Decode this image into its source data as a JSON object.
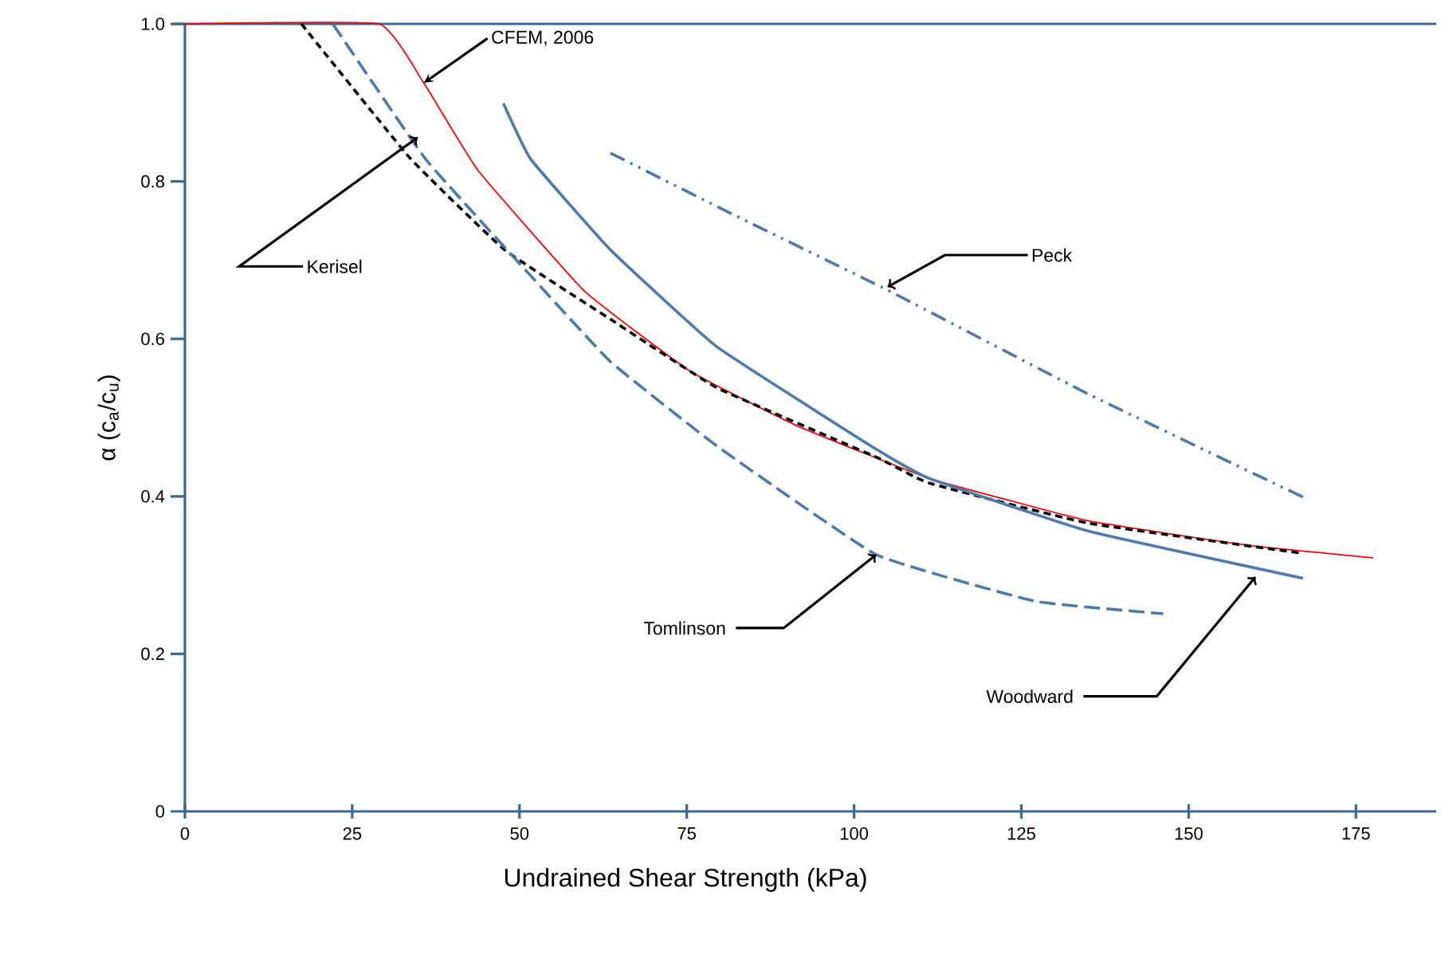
{
  "chart_data": {
    "type": "line",
    "xlabel": "Undrained Shear Strength (kPa)",
    "ylabel": "α (c$_{a}$/c$_{u}$)",
    "xlim": [
      0,
      187
    ],
    "ylim": [
      0,
      1
    ],
    "xticks": [
      0,
      25,
      50,
      75,
      100,
      125,
      150,
      175
    ],
    "yticks": [
      0,
      0.2,
      0.4,
      0.6,
      0.8,
      {
        "value": 1,
        "label": "1.0"
      }
    ],
    "grid": false,
    "marker": "none",
    "series": [
      {
        "color": "#ff0000",
        "line_style": "solid",
        "x": [
          0,
          29,
          35.7,
          43.8,
          59.8,
          75.5,
          91.4,
          111.2,
          135,
          158.8,
          177.6
        ],
        "values": [
          1,
          1,
          0.925,
          0.814,
          0.66,
          0.559,
          0.49,
          0.423,
          0.369,
          0.338,
          0.322
        ]
      },
      {
        "color": "#000000",
        "line_style": "dashed",
        "x": [
          17.4,
          33.6,
          47.8,
          63.6,
          79.5,
          103.3,
          111.2,
          135,
          166.9
        ],
        "values": [
          1,
          0.83,
          0.713,
          0.625,
          0.538,
          0.45,
          0.417,
          0.366,
          0.328
        ]
      },
      {
        "color": "#4a7ab0",
        "line_style": "long dashed",
        "x": [
          22.1,
          36,
          51.7,
          63.6,
          79.5,
          103.3,
          127,
          146.2
        ],
        "values": [
          1,
          0.828,
          0.68,
          0.571,
          0.464,
          0.326,
          0.267,
          0.251
        ]
      },
      {
        "color": "#4a7ab0",
        "line_style": "solid",
        "x": [
          47.6,
          51.7,
          63.6,
          79.5,
          103.3,
          111.2,
          135,
          167.1
        ],
        "values": [
          0.899,
          0.828,
          0.713,
          0.59,
          0.46,
          0.423,
          0.356,
          0.296
        ]
      },
      {
        "color": "#4a7ab0",
        "line_style": "dashdotdot",
        "x": [
          63.6,
          81.2,
          105,
          135,
          167.6
        ],
        "values": [
          0.836,
          0.761,
          0.662,
          0.53,
          0.397
        ]
      }
    ],
    "annotations": [
      {
        "text": "CFEM, 2006",
        "x": 35.7,
        "y": 0.925
      },
      {
        "text": "Kerisel",
        "x": 34.8,
        "y": 0.856
      },
      {
        "text": "Peck",
        "x": 105,
        "y": 0.666
      },
      {
        "text": "Tomlinson",
        "x": 103.3,
        "y": 0.326
      },
      {
        "text": "Woodward",
        "x": 160,
        "y": 0.298
      }
    ]
  }
}
